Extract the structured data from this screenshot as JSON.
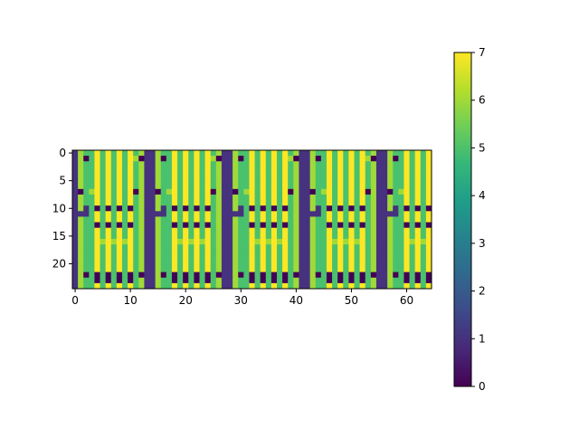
{
  "chart_data": {
    "type": "heatmap",
    "title": "",
    "xlabel": "",
    "ylabel": "",
    "rows": 25,
    "cols": 65,
    "xlim": [
      -0.5,
      64.5
    ],
    "ylim": [
      24.5,
      -0.5
    ],
    "x_ticks": [
      0,
      10,
      20,
      30,
      40,
      50,
      60
    ],
    "y_ticks": [
      0,
      5,
      10,
      15,
      20
    ],
    "colorbar": {
      "min": 0,
      "max": 7,
      "ticks": [
        0,
        1,
        2,
        3,
        4,
        5,
        6,
        7
      ],
      "colormap": "viridis"
    },
    "palette": {
      "0": "#440154",
      "1": "#46327e",
      "2": "#365c8d",
      "3": "#277f8e",
      "4": "#1fa187",
      "5": "#4ac16d",
      "6": "#a0da39",
      "7": "#fde725"
    },
    "block_starts": [
      0,
      14,
      28,
      42,
      56
    ],
    "block_pattern": [
      "1655757575756",
      "1605757575760",
      "1655757575756",
      "1655757575756",
      "1655757575756",
      "1655757575756",
      "1655757575756",
      "1056757575706",
      "1655757575756",
      "1655757575756",
      "1615050505056",
      "1115757575756",
      "1655757575756",
      "1655050505056",
      "1655757575756",
      "1655757575756",
      "1655767676756",
      "1655757575756",
      "1655757575756",
      "1655757575756",
      "1655757575756",
      "1655757575756",
      "1605050505050",
      "1655050505056",
      "1655757575756"
    ],
    "separators": [
      13,
      27,
      41,
      55
    ],
    "separator_value": 1,
    "right_edge_value": 7
  }
}
